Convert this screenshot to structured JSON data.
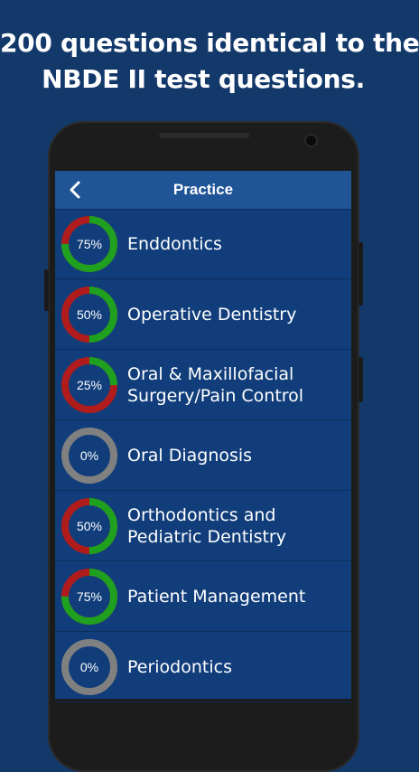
{
  "headline": {
    "line1": "200 questions identical to the",
    "line2": "NBDE II test questions."
  },
  "appbar": {
    "title": "Practice",
    "back_icon": "chevron-left-icon"
  },
  "colors": {
    "background": "#13396b",
    "appbar": "#1f5497",
    "list_bg": "#113e7b",
    "progress_done": "#1fa01f",
    "progress_remaining": "#b01c1c",
    "progress_empty": "#808080"
  },
  "items": [
    {
      "label": "Enddontics",
      "progress_text": "75%",
      "progress": 0.75
    },
    {
      "label": "Operative Dentistry",
      "progress_text": "50%",
      "progress": 0.5
    },
    {
      "label": "Oral & Maxillofacial Surgery/Pain Control",
      "progress_text": "25%",
      "progress": 0.25
    },
    {
      "label": "Oral Diagnosis",
      "progress_text": "0%",
      "progress": 0
    },
    {
      "label": "Orthodontics and Pediatric Dentistry",
      "progress_text": "50%",
      "progress": 0.5
    },
    {
      "label": "Patient Management",
      "progress_text": "75%",
      "progress": 0.75
    },
    {
      "label": "Periodontics",
      "progress_text": "0%",
      "progress": 0
    }
  ]
}
